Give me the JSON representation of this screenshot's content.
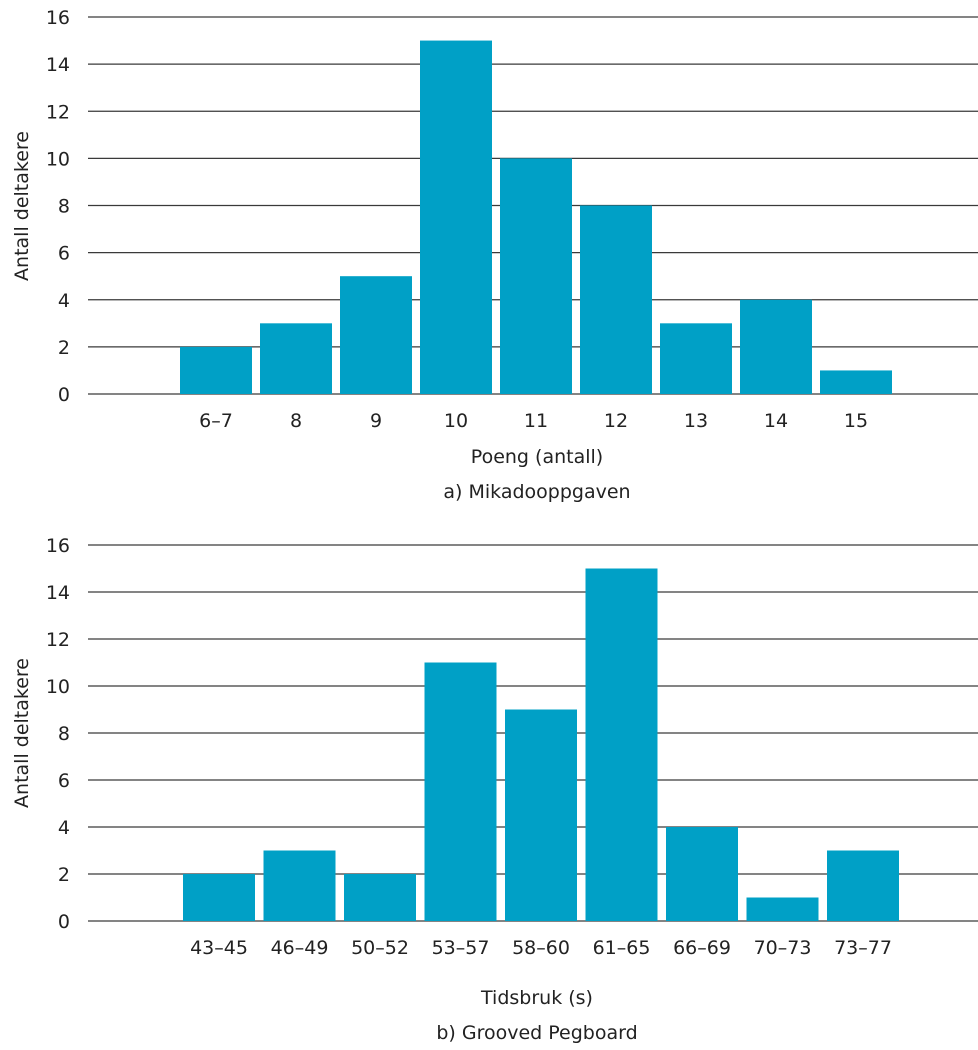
{
  "colors": {
    "bar": "#00A0C6",
    "grid": "#3a3a3a",
    "text": "#222222"
  },
  "chart_data": [
    {
      "type": "bar",
      "caption": "a) Mikadooppgaven",
      "xlabel": "Poeng (antall)",
      "ylabel": "Antall deltakere",
      "ylim": [
        0,
        16
      ],
      "yticks": [
        "0",
        "2",
        "4",
        "6",
        "8",
        "10",
        "12",
        "14",
        "16"
      ],
      "categories": [
        "6–7",
        "8",
        "9",
        "10",
        "11",
        "12",
        "13",
        "14",
        "15"
      ],
      "values": [
        2,
        3,
        5,
        15,
        10,
        8,
        3,
        4,
        1
      ],
      "grid": true
    },
    {
      "type": "bar",
      "caption": "b)  Grooved Pegboard",
      "xlabel": "Tidsbruk (s)",
      "ylabel": "Antall deltakere",
      "ylim": [
        0,
        16
      ],
      "yticks": [
        "0",
        "2",
        "4",
        "6",
        "8",
        "10",
        "12",
        "14",
        "16"
      ],
      "categories": [
        "43–45",
        "46–49",
        "50–52",
        "53–57",
        "58–60",
        "61–65",
        "66–69",
        "70–73",
        "73–77"
      ],
      "values": [
        2,
        3,
        2,
        11,
        9,
        15,
        4,
        1,
        3
      ],
      "grid": true
    }
  ]
}
